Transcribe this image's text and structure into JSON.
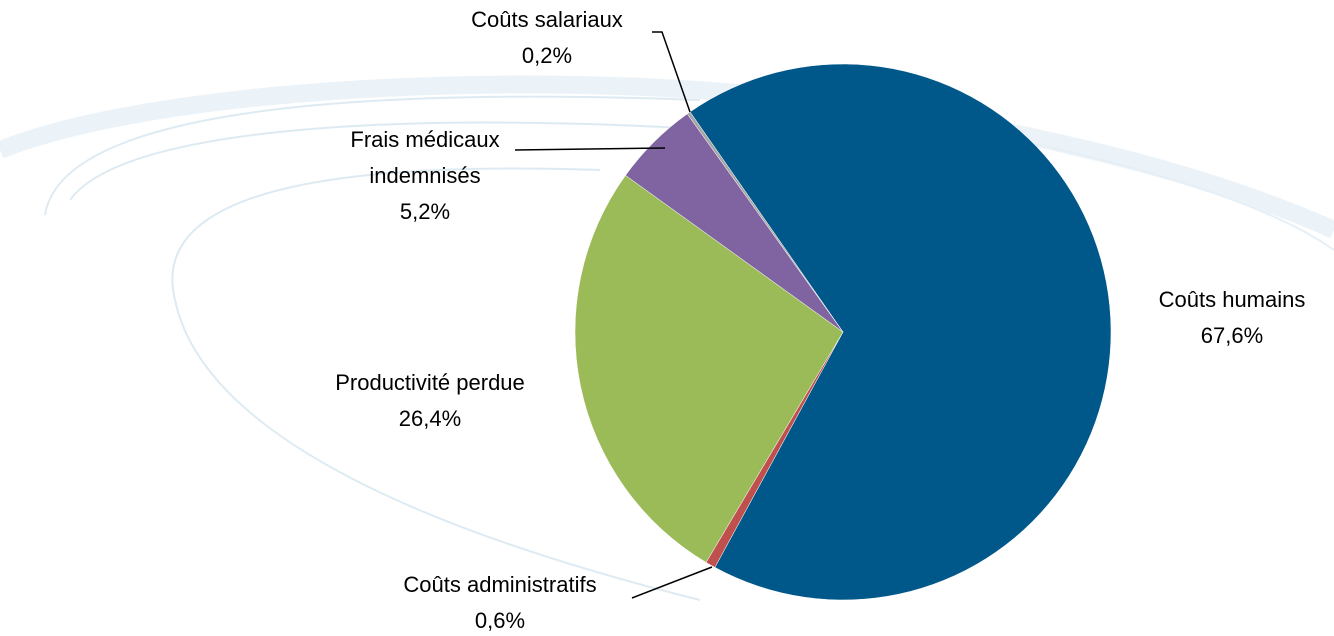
{
  "chart_data": {
    "type": "pie",
    "categories": [
      "Coûts humains",
      "Coûts administratifs",
      "Productivité perdue",
      "Frais médicaux indemnisés",
      "Coûts salariaux"
    ],
    "values": [
      67.6,
      0.6,
      26.4,
      5.2,
      0.2
    ],
    "value_labels": [
      "67,6%",
      "0,6%",
      "26,4%",
      "5,2%",
      "0,2%"
    ],
    "colors": [
      "#00588a",
      "#c0504d",
      "#9bbb59",
      "#8064a2",
      "#a5a5a5"
    ]
  }
}
